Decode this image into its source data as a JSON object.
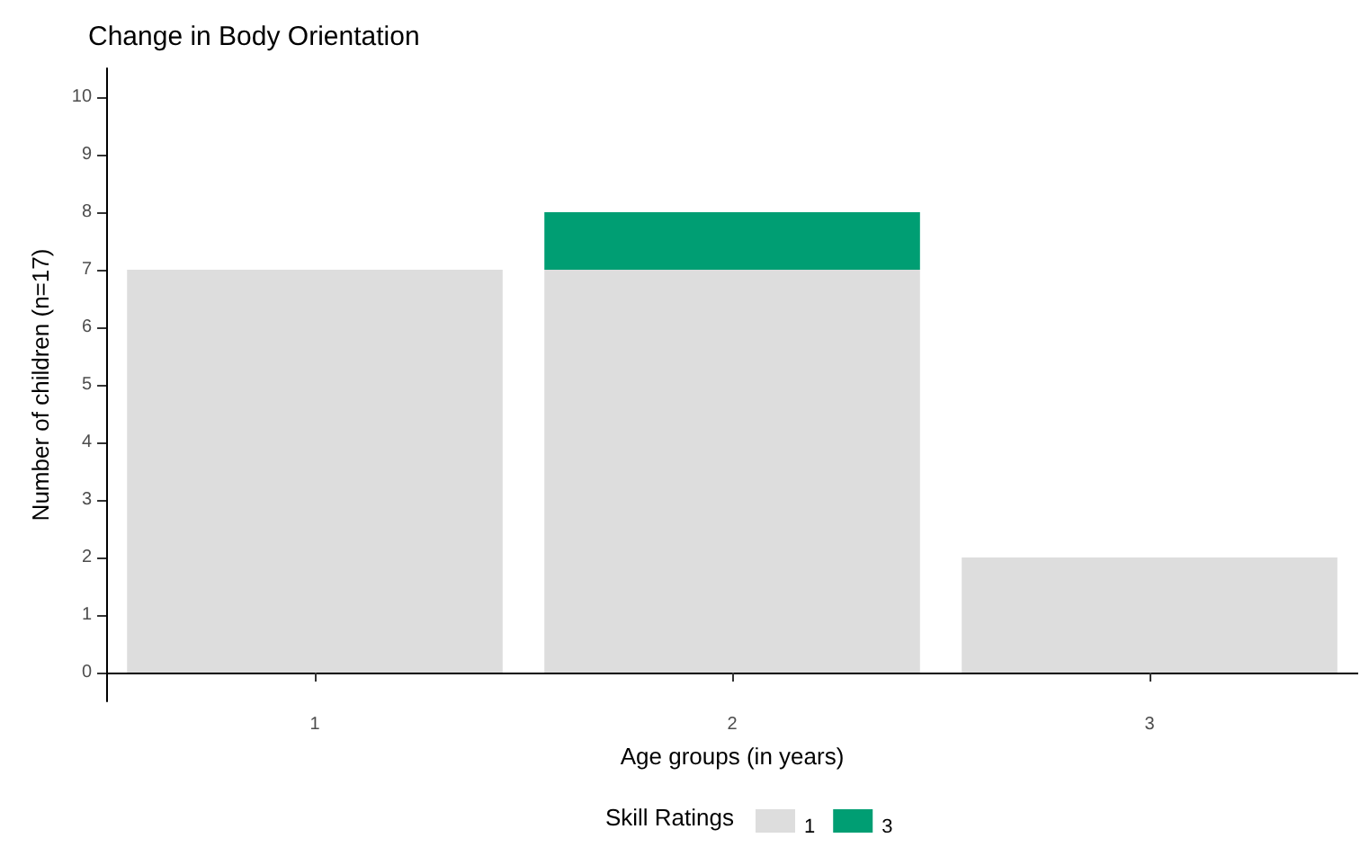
{
  "chart_data": {
    "type": "bar",
    "title": "Change in Body Orientation",
    "xlabel": "Age groups (in years)",
    "ylabel": "Number of children (n=17)",
    "legend_title": "Skill Ratings",
    "categories": [
      "1",
      "2",
      "3"
    ],
    "stacked": true,
    "series": [
      {
        "name": "1",
        "color": "#dddddd",
        "values": [
          7,
          7,
          2
        ]
      },
      {
        "name": "3",
        "color": "#009e73",
        "values": [
          null,
          1,
          null
        ]
      }
    ],
    "ylim": [
      -0.5,
      10.5
    ],
    "yticks": [
      0,
      1,
      2,
      3,
      4,
      5,
      6,
      7,
      8,
      9,
      10
    ],
    "grid": false,
    "legend": "bottom"
  }
}
